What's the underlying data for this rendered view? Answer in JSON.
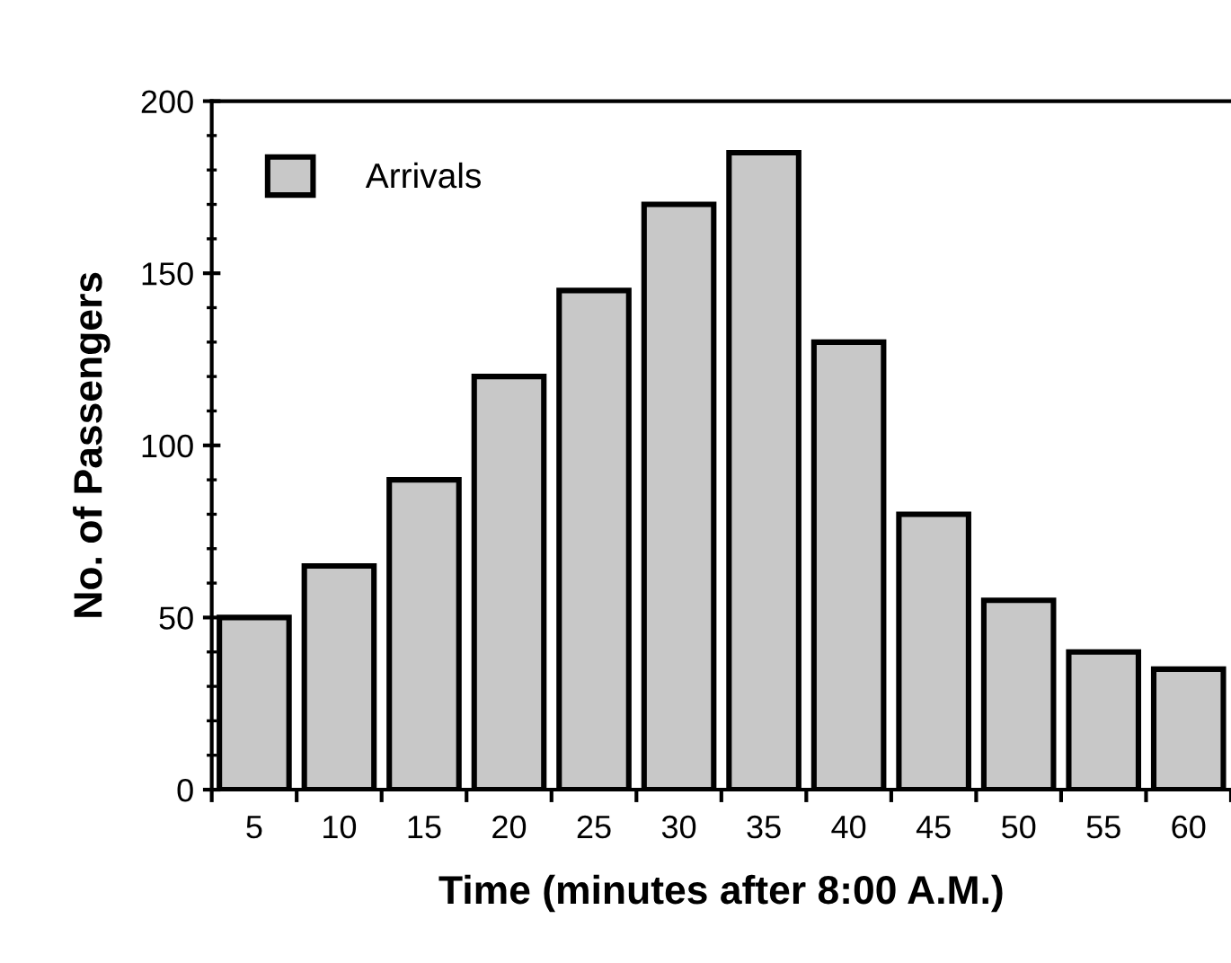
{
  "chart_data": {
    "type": "bar",
    "xlabel": "Time (minutes after 8:00 A.M.)",
    "ylabel": "No. of Passengers",
    "categories": [
      "5",
      "10",
      "15",
      "20",
      "25",
      "30",
      "35",
      "40",
      "45",
      "50",
      "55",
      "60"
    ],
    "series": [
      {
        "name": "Arrivals",
        "color": "#c8c8c8",
        "values": [
          50,
          65,
          90,
          120,
          145,
          170,
          185,
          130,
          80,
          55,
          40,
          35
        ]
      }
    ],
    "ylim": [
      0,
      200
    ],
    "yticks": [
      0,
      50,
      100,
      150,
      200
    ],
    "grid": false,
    "legend": "top left"
  }
}
